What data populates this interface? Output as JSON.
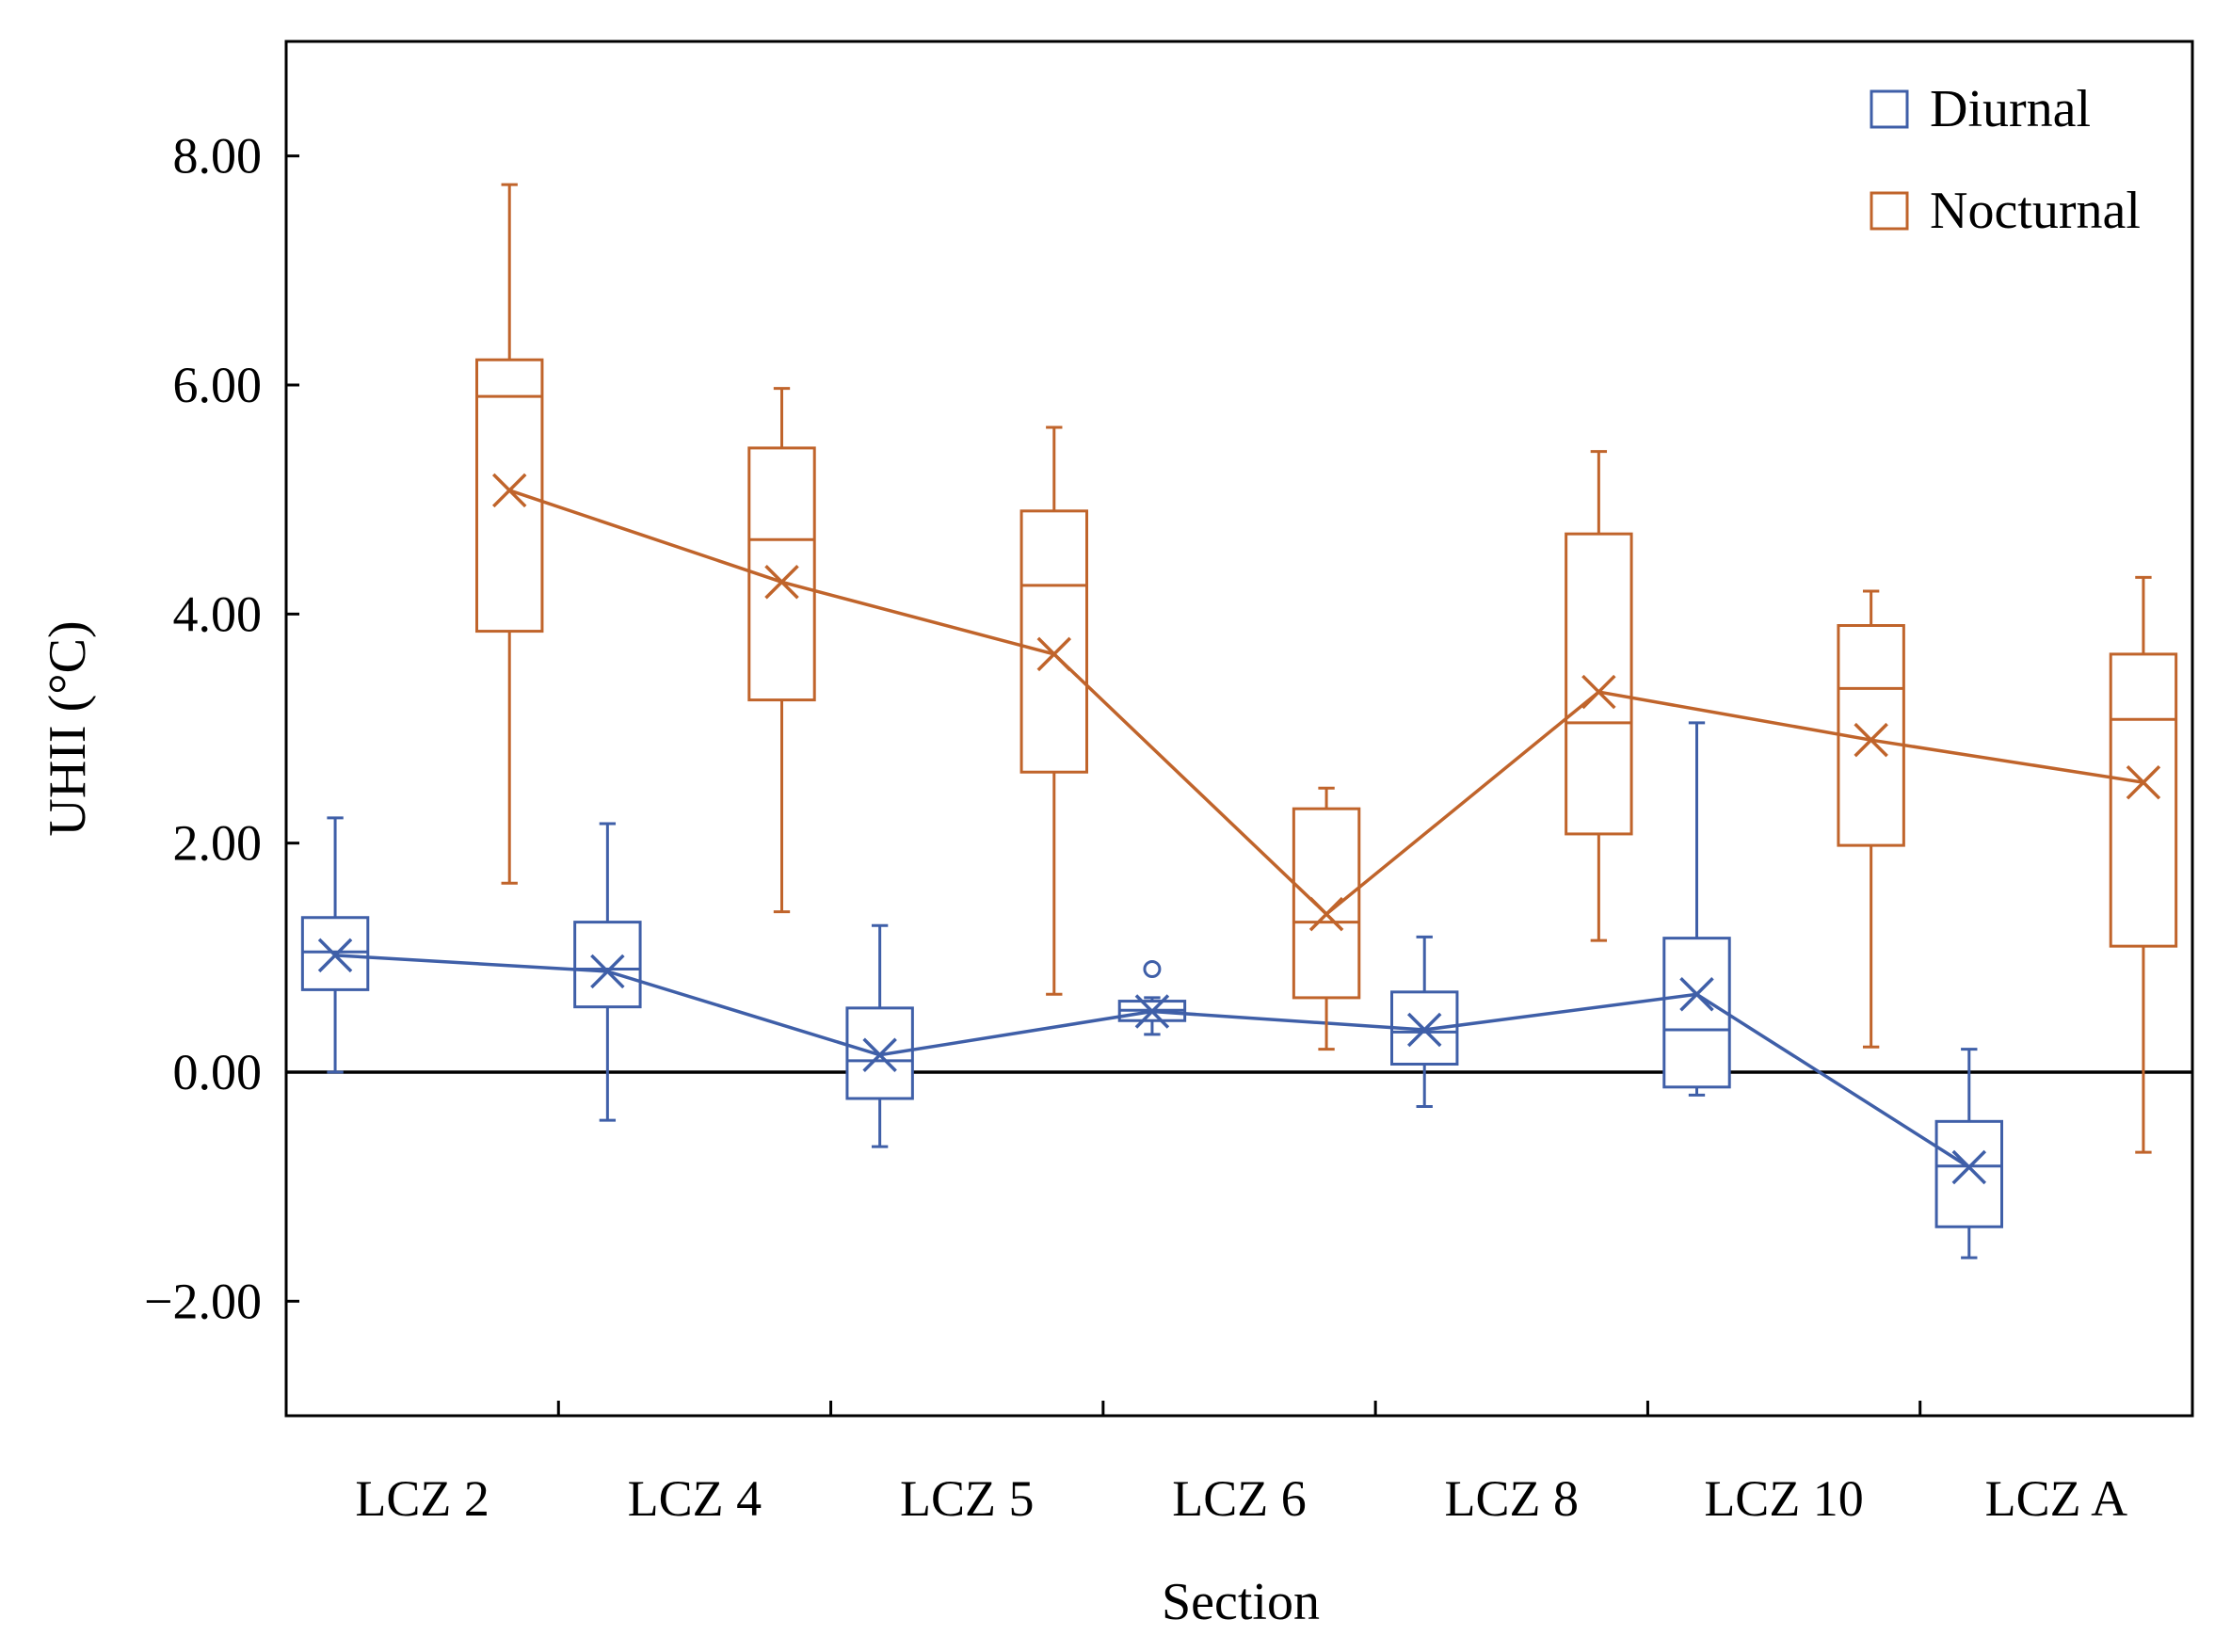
{
  "chart_data": {
    "type": "box",
    "title": "",
    "xlabel": "Section",
    "ylabel": "UHII (°C)",
    "ylim": [
      -3.0,
      9.0
    ],
    "yticks": [
      8.0,
      6.0,
      4.0,
      2.0,
      0.0,
      -2.0
    ],
    "ytick_labels": [
      "8.00",
      "6.00",
      "4.00",
      "2.00",
      "0.00",
      "−2.00"
    ],
    "categories": [
      "LCZ 2",
      "LCZ 4",
      "LCZ 5",
      "LCZ 6",
      "LCZ 8",
      "LCZ 10",
      "LCZ A"
    ],
    "reference_line": 0.0,
    "legend_position": "top-right",
    "series": [
      {
        "name": "Diurnal",
        "color": "#3f5fa8",
        "boxes": [
          {
            "whisker_low": 0.0,
            "q1": 0.72,
            "median": 1.05,
            "q3": 1.35,
            "whisker_high": 2.22,
            "mean": 1.02,
            "outliers": []
          },
          {
            "whisker_low": -0.42,
            "q1": 0.57,
            "median": 0.9,
            "q3": 1.31,
            "whisker_high": 2.17,
            "mean": 0.88,
            "outliers": []
          },
          {
            "whisker_low": -0.65,
            "q1": -0.23,
            "median": 0.1,
            "q3": 0.56,
            "whisker_high": 1.28,
            "mean": 0.15,
            "outliers": []
          },
          {
            "whisker_low": 0.33,
            "q1": 0.45,
            "median": 0.54,
            "q3": 0.62,
            "whisker_high": 0.65,
            "mean": 0.53,
            "outliers": [
              0.9
            ]
          },
          {
            "whisker_low": -0.3,
            "q1": 0.07,
            "median": 0.35,
            "q3": 0.7,
            "whisker_high": 1.18,
            "mean": 0.37,
            "outliers": []
          },
          {
            "whisker_low": -0.2,
            "q1": -0.13,
            "median": 0.37,
            "q3": 1.17,
            "whisker_high": 3.05,
            "mean": 0.68,
            "outliers": []
          },
          {
            "whisker_low": -1.62,
            "q1": -1.35,
            "median": -0.82,
            "q3": -0.43,
            "whisker_high": 0.2,
            "mean": -0.83,
            "outliers": []
          }
        ]
      },
      {
        "name": "Nocturnal",
        "color": "#c0642b",
        "boxes": [
          {
            "whisker_low": 1.65,
            "q1": 3.85,
            "median": 5.9,
            "q3": 6.22,
            "whisker_high": 7.75,
            "mean": 5.08,
            "outliers": []
          },
          {
            "whisker_low": 1.4,
            "q1": 3.25,
            "median": 4.65,
            "q3": 5.45,
            "whisker_high": 5.97,
            "mean": 4.28,
            "outliers": []
          },
          {
            "whisker_low": 0.68,
            "q1": 2.62,
            "median": 4.25,
            "q3": 4.9,
            "whisker_high": 5.63,
            "mean": 3.65,
            "outliers": []
          },
          {
            "whisker_low": 0.2,
            "q1": 0.65,
            "median": 1.31,
            "q3": 2.3,
            "whisker_high": 2.48,
            "mean": 1.38,
            "outliers": []
          },
          {
            "whisker_low": 1.15,
            "q1": 2.08,
            "median": 3.05,
            "q3": 4.7,
            "whisker_high": 5.42,
            "mean": 3.32,
            "outliers": []
          },
          {
            "whisker_low": 0.22,
            "q1": 1.98,
            "median": 3.35,
            "q3": 3.9,
            "whisker_high": 4.2,
            "mean": 2.9,
            "outliers": []
          },
          {
            "whisker_low": -0.7,
            "q1": 1.1,
            "median": 3.08,
            "q3": 3.65,
            "whisker_high": 4.32,
            "mean": 2.53,
            "outliers": []
          }
        ]
      }
    ]
  }
}
